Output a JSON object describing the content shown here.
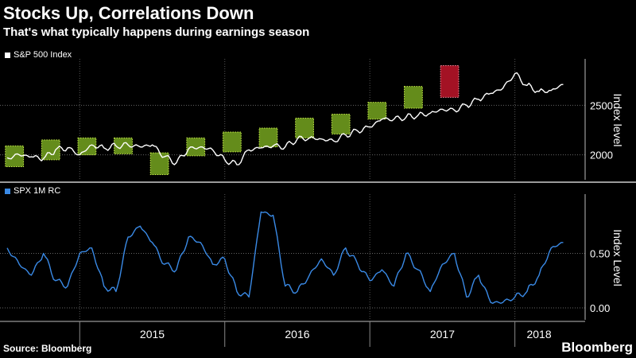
{
  "header": {
    "title": "Stocks Up, Correlations Down",
    "subtitle": "That's what typically happens during earnings season"
  },
  "footer": {
    "source": "Source: Bloomberg",
    "brand": "Bloomberg"
  },
  "colors": {
    "background": "#000000",
    "sp500_line": "#ffffff",
    "corr_line": "#3a8ae6",
    "earnings_box": "#6f9b1e",
    "earnings_box_border": "#c8f04a",
    "highlight_box": "#c0152a",
    "highlight_box_border": "#ff8da0"
  },
  "chart_data": [
    {
      "type": "line",
      "name": "sp500-panel",
      "series": [
        {
          "name": "S&P 500 Index",
          "x": [
            "2014-07",
            "2014-08",
            "2014-09",
            "2014-10",
            "2014-11",
            "2014-12",
            "2015-01",
            "2015-02",
            "2015-03",
            "2015-04",
            "2015-05",
            "2015-06",
            "2015-07",
            "2015-08",
            "2015-09",
            "2015-10",
            "2015-11",
            "2015-12",
            "2016-01",
            "2016-02",
            "2016-03",
            "2016-04",
            "2016-05",
            "2016-06",
            "2016-07",
            "2016-08",
            "2016-09",
            "2016-10",
            "2016-11",
            "2016-12",
            "2017-01",
            "2017-02",
            "2017-03",
            "2017-04",
            "2017-05",
            "2017-06",
            "2017-07",
            "2017-08",
            "2017-09",
            "2017-10",
            "2017-11",
            "2017-12",
            "2018-01",
            "2018-02",
            "2018-03",
            "2018-04",
            "2018-05"
          ],
          "values": [
            1970,
            2000,
            1980,
            1960,
            2050,
            2070,
            2000,
            2100,
            2070,
            2090,
            2100,
            2080,
            2100,
            1980,
            1920,
            2060,
            2080,
            2050,
            1950,
            1900,
            2050,
            2070,
            2090,
            2080,
            2160,
            2170,
            2160,
            2140,
            2200,
            2240,
            2280,
            2360,
            2360,
            2380,
            2400,
            2420,
            2460,
            2450,
            2500,
            2560,
            2620,
            2670,
            2820,
            2700,
            2640,
            2650,
            2710
          ]
        }
      ],
      "highlights": [
        {
          "label": "earnings-season",
          "from": "2014-07",
          "to": "2014-08",
          "low": 1880,
          "high": 2090
        },
        {
          "label": "earnings-season",
          "from": "2014-10",
          "to": "2014-11",
          "low": 1950,
          "high": 2150
        },
        {
          "label": "earnings-season",
          "from": "2015-01",
          "to": "2015-02",
          "low": 2000,
          "high": 2170
        },
        {
          "label": "earnings-season",
          "from": "2015-04",
          "to": "2015-05",
          "low": 2010,
          "high": 2170
        },
        {
          "label": "earnings-season",
          "from": "2015-07",
          "to": "2015-08",
          "low": 1800,
          "high": 2020
        },
        {
          "label": "earnings-season",
          "from": "2015-10",
          "to": "2015-11",
          "low": 1990,
          "high": 2170
        },
        {
          "label": "earnings-season",
          "from": "2016-01",
          "to": "2016-02",
          "low": 2030,
          "high": 2230
        },
        {
          "label": "earnings-season",
          "from": "2016-04",
          "to": "2016-05",
          "low": 2080,
          "high": 2270
        },
        {
          "label": "earnings-season",
          "from": "2016-07",
          "to": "2016-08",
          "low": 2170,
          "high": 2370
        },
        {
          "label": "earnings-season",
          "from": "2016-10",
          "to": "2016-11",
          "low": 2210,
          "high": 2410
        },
        {
          "label": "earnings-season",
          "from": "2017-01",
          "to": "2017-02",
          "low": 2360,
          "high": 2530
        },
        {
          "label": "earnings-season",
          "from": "2017-04",
          "to": "2017-05",
          "low": 2470,
          "high": 2690
        },
        {
          "label": "correlation-spike",
          "from": "2017-07",
          "to": "2017-08",
          "low": 2580,
          "high": 2900
        }
      ],
      "ylabel": "Index level",
      "yticks": [
        2000,
        2500
      ],
      "ylim": [
        1780,
        2920
      ],
      "grid": true,
      "legend": "top-left"
    },
    {
      "type": "line",
      "name": "correlation-panel",
      "series": [
        {
          "name": "SPX 1M RC",
          "x": [
            "2014-07",
            "2014-08",
            "2014-09",
            "2014-10",
            "2014-11",
            "2014-12",
            "2015-01",
            "2015-02",
            "2015-03",
            "2015-04",
            "2015-05",
            "2015-06",
            "2015-07",
            "2015-08",
            "2015-09",
            "2015-10",
            "2015-11",
            "2015-12",
            "2016-01",
            "2016-02",
            "2016-03",
            "2016-04",
            "2016-05",
            "2016-06",
            "2016-07",
            "2016-08",
            "2016-09",
            "2016-10",
            "2016-11",
            "2016-12",
            "2017-01",
            "2017-02",
            "2017-03",
            "2017-04",
            "2017-05",
            "2017-06",
            "2017-07",
            "2017-08",
            "2017-09",
            "2017-10",
            "2017-11",
            "2017-12",
            "2018-01",
            "2018-02",
            "2018-03",
            "2018-04",
            "2018-05"
          ],
          "values": [
            0.55,
            0.4,
            0.3,
            0.5,
            0.25,
            0.2,
            0.5,
            0.55,
            0.2,
            0.15,
            0.65,
            0.75,
            0.6,
            0.4,
            0.35,
            0.65,
            0.6,
            0.4,
            0.45,
            0.15,
            0.1,
            0.88,
            0.85,
            0.2,
            0.15,
            0.3,
            0.45,
            0.3,
            0.55,
            0.4,
            0.25,
            0.35,
            0.2,
            0.5,
            0.35,
            0.15,
            0.4,
            0.5,
            0.1,
            0.3,
            0.05,
            0.05,
            0.1,
            0.15,
            0.3,
            0.55,
            0.6
          ]
        }
      ],
      "ylabel": "Index Level",
      "yticks": [
        "0.00",
        "0.50"
      ],
      "ylim": [
        -0.08,
        1.0
      ],
      "grid": true,
      "legend": "top-left"
    }
  ],
  "xaxis": {
    "ticks": [
      {
        "label": "2015",
        "at": "2015-01"
      },
      {
        "label": "2016",
        "at": "2016-01"
      },
      {
        "label": "2017",
        "at": "2017-01"
      },
      {
        "label": "2018",
        "at": "2018-01"
      }
    ],
    "year_boundaries": [
      "2015-01",
      "2016-01",
      "2017-01",
      "2018-01"
    ],
    "range": [
      "2014-07",
      "2018-05"
    ]
  }
}
